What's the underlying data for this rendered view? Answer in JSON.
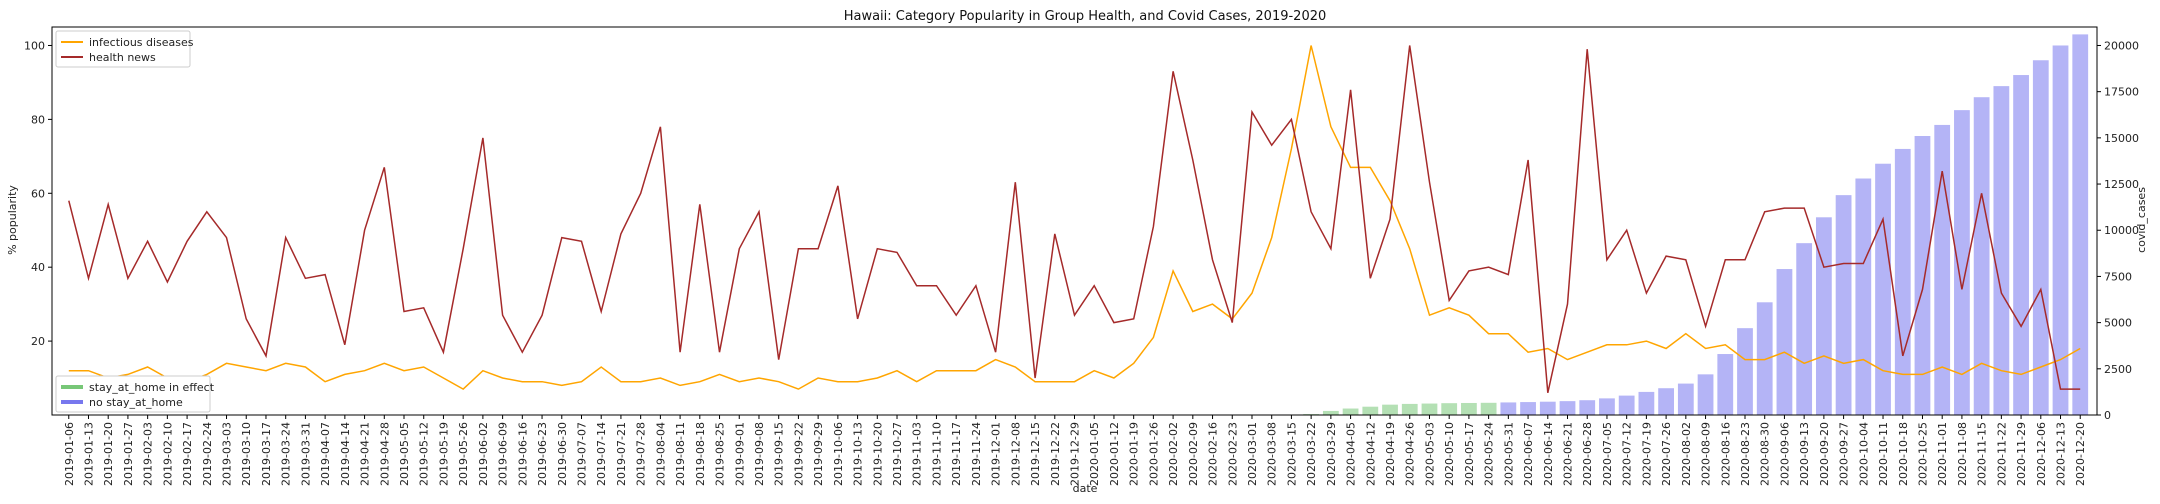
{
  "chart_data": {
    "type": "line",
    "title": "Hawaii: Category Popularity in Group Health, and Covid Cases, 2019-2020",
    "xlabel": "date",
    "ylabel": "% popularity",
    "y2label": "covid_cases",
    "ylim": [
      0,
      105
    ],
    "y2lim": [
      0,
      21000
    ],
    "yticks": [
      20,
      40,
      60,
      80,
      100
    ],
    "y2ticks": [
      0,
      2500,
      5000,
      7500,
      10000,
      12500,
      15000,
      17500,
      20000
    ],
    "grid": false,
    "legend_top": "top-left",
    "legend_bottom": "bottom-left",
    "categories": [
      "2019-01-06",
      "2019-01-13",
      "2019-01-20",
      "2019-01-27",
      "2019-02-03",
      "2019-02-10",
      "2019-02-17",
      "2019-02-24",
      "2019-03-03",
      "2019-03-10",
      "2019-03-17",
      "2019-03-24",
      "2019-03-31",
      "2019-04-07",
      "2019-04-14",
      "2019-04-21",
      "2019-04-28",
      "2019-05-05",
      "2019-05-12",
      "2019-05-19",
      "2019-05-26",
      "2019-06-02",
      "2019-06-09",
      "2019-06-16",
      "2019-06-23",
      "2019-06-30",
      "2019-07-07",
      "2019-07-14",
      "2019-07-21",
      "2019-07-28",
      "2019-08-04",
      "2019-08-11",
      "2019-08-18",
      "2019-08-25",
      "2019-09-01",
      "2019-09-08",
      "2019-09-15",
      "2019-09-22",
      "2019-09-29",
      "2019-10-06",
      "2019-10-13",
      "2019-10-20",
      "2019-10-27",
      "2019-11-03",
      "2019-11-10",
      "2019-11-17",
      "2019-11-24",
      "2019-12-01",
      "2019-12-08",
      "2019-12-15",
      "2019-12-22",
      "2019-12-29",
      "2020-01-05",
      "2020-01-12",
      "2020-01-19",
      "2020-01-26",
      "2020-02-02",
      "2020-02-09",
      "2020-02-16",
      "2020-02-23",
      "2020-03-01",
      "2020-03-08",
      "2020-03-15",
      "2020-03-22",
      "2020-03-29",
      "2020-04-05",
      "2020-04-12",
      "2020-04-19",
      "2020-04-26",
      "2020-05-03",
      "2020-05-10",
      "2020-05-17",
      "2020-05-24",
      "2020-05-31",
      "2020-06-07",
      "2020-06-14",
      "2020-06-21",
      "2020-06-28",
      "2020-07-05",
      "2020-07-12",
      "2020-07-19",
      "2020-07-26",
      "2020-08-02",
      "2020-08-09",
      "2020-08-16",
      "2020-08-23",
      "2020-08-30",
      "2020-09-06",
      "2020-09-13",
      "2020-09-20",
      "2020-09-27",
      "2020-10-04",
      "2020-10-11",
      "2020-10-18",
      "2020-10-25",
      "2020-11-01",
      "2020-11-08",
      "2020-11-15",
      "2020-11-22",
      "2020-11-29",
      "2020-12-06",
      "2020-12-13",
      "2020-12-20"
    ],
    "series": [
      {
        "name": "infectious diseases",
        "color": "#FFA500",
        "axis": "left",
        "values": [
          12,
          12,
          10,
          11,
          13,
          10,
          9,
          11,
          14,
          13,
          12,
          14,
          13,
          9,
          11,
          12,
          14,
          12,
          13,
          10,
          7,
          12,
          10,
          9,
          9,
          8,
          9,
          13,
          9,
          9,
          10,
          8,
          9,
          11,
          9,
          10,
          9,
          7,
          10,
          9,
          9,
          10,
          12,
          9,
          12,
          12,
          12,
          15,
          13,
          9,
          9,
          9,
          12,
          10,
          14,
          21,
          39,
          28,
          30,
          26,
          33,
          48,
          72,
          100,
          78,
          67,
          67,
          58,
          45,
          27,
          29,
          27,
          22,
          22,
          17,
          18,
          15,
          17,
          19,
          19,
          20,
          18,
          22,
          18,
          19,
          15,
          15,
          17,
          14,
          16,
          14,
          15,
          12,
          11,
          11,
          13,
          11,
          14,
          12,
          11,
          13,
          15,
          18
        ]
      },
      {
        "name": "health news",
        "color": "#A52A2A",
        "axis": "left",
        "values": [
          58,
          37,
          57,
          37,
          47,
          36,
          47,
          55,
          48,
          26,
          16,
          48,
          37,
          38,
          19,
          50,
          67,
          28,
          29,
          17,
          45,
          75,
          27,
          17,
          27,
          48,
          47,
          28,
          49,
          60,
          78,
          17,
          57,
          17,
          45,
          55,
          15,
          45,
          45,
          62,
          26,
          45,
          44,
          35,
          35,
          27,
          35,
          17,
          63,
          10,
          49,
          27,
          35,
          25,
          26,
          51,
          93,
          69,
          42,
          25,
          82,
          73,
          80,
          55,
          45,
          88,
          37,
          53,
          100,
          63,
          31,
          39,
          40,
          38,
          69,
          6,
          30,
          99,
          42,
          50,
          33,
          43,
          42,
          24,
          42,
          42,
          55,
          56,
          56,
          40,
          41,
          41,
          53,
          16,
          34,
          66,
          34,
          60,
          33,
          24,
          34,
          7,
          7
        ]
      },
      {
        "name": "covid_cases",
        "color": "#7777ee",
        "axis": "right",
        "kind": "bar",
        "values": [
          0,
          0,
          0,
          0,
          0,
          0,
          0,
          0,
          0,
          0,
          0,
          0,
          0,
          0,
          0,
          0,
          0,
          0,
          0,
          0,
          0,
          0,
          0,
          0,
          0,
          0,
          0,
          0,
          0,
          0,
          0,
          0,
          0,
          0,
          0,
          0,
          0,
          0,
          0,
          0,
          0,
          0,
          0,
          0,
          0,
          0,
          0,
          0,
          0,
          0,
          0,
          0,
          0,
          0,
          0,
          0,
          0,
          0,
          0,
          0,
          0,
          0,
          0,
          50,
          220,
          350,
          450,
          560,
          600,
          620,
          640,
          650,
          660,
          680,
          700,
          720,
          750,
          800,
          900,
          1050,
          1250,
          1450,
          1700,
          2200,
          3300,
          4700,
          6100,
          7900,
          9300,
          10700,
          11900,
          12800,
          13600,
          14400,
          15100,
          15700,
          16500,
          17200,
          17800,
          18400,
          19200,
          20000,
          20600
        ]
      }
    ],
    "stay_at_home_in_effect": [
      63,
      64,
      65,
      66,
      67,
      68,
      69,
      70,
      71,
      72
    ],
    "legend": {
      "lines": [
        "infectious diseases",
        "health news"
      ],
      "bars": [
        {
          "label": "stay_at_home in effect",
          "color": "#77c777"
        },
        {
          "label": "no stay_at_home",
          "color": "#7777ee"
        }
      ]
    }
  }
}
